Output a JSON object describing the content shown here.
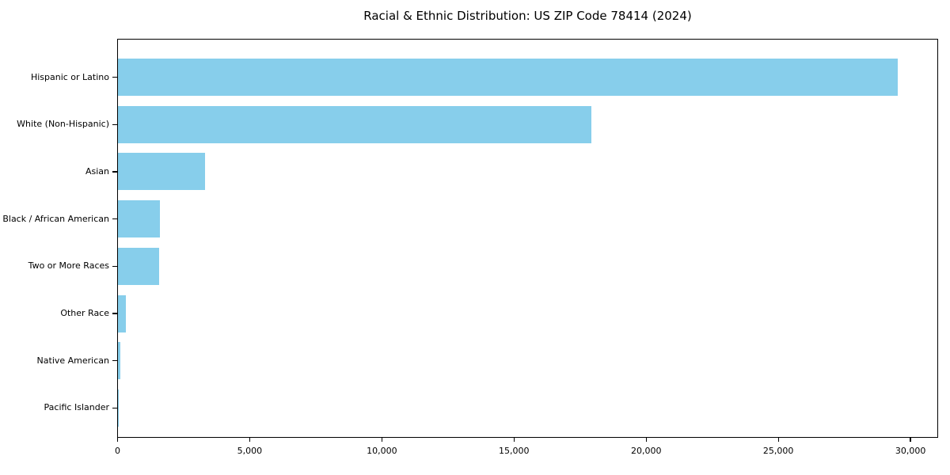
{
  "chart_data": {
    "type": "bar",
    "orientation": "horizontal",
    "title": "Racial & Ethnic Distribution: US ZIP Code 78414 (2024)",
    "xlabel": "",
    "ylabel": "",
    "categories": [
      "Hispanic or Latino",
      "White (Non-Hispanic)",
      "Asian",
      "Black / African American",
      "Two or More Races",
      "Other Race",
      "Native American",
      "Pacific Islander"
    ],
    "values": [
      29500,
      17900,
      3300,
      1600,
      1550,
      300,
      80,
      20
    ],
    "xlim": [
      0,
      31000
    ],
    "x_ticks": [
      0,
      5000,
      10000,
      15000,
      20000,
      25000,
      30000
    ],
    "x_tick_labels": [
      "0",
      "5,000",
      "10,000",
      "15,000",
      "20,000",
      "25,000",
      "30,000"
    ],
    "bar_color": "#87CEEB",
    "background_color": "#ffffff",
    "grid": false,
    "legend": false
  }
}
